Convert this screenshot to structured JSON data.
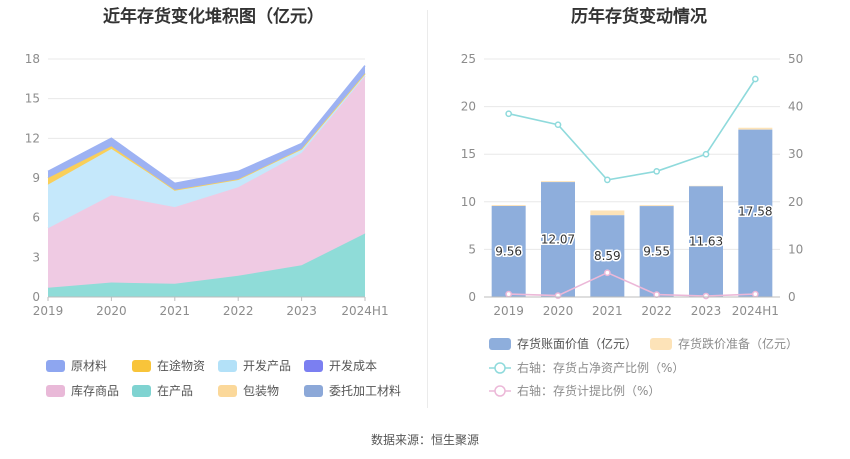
{
  "left_chart": {
    "title": "近年存货变化堆积图（亿元）",
    "chart_data": {
      "type": "area",
      "stacked": true,
      "categories": [
        "2019",
        "2020",
        "2021",
        "2022",
        "2023",
        "2024H1"
      ],
      "ylim": [
        0,
        18
      ],
      "yticks": [
        0,
        3,
        6,
        9,
        12,
        15,
        18
      ],
      "grid": true,
      "series": [
        {
          "name": "在产品",
          "color": "#8fdcd8",
          "values": [
            0.7,
            1.1,
            1.0,
            1.6,
            2.4,
            4.8
          ]
        },
        {
          "name": "库存商品",
          "color": "#efcae3",
          "values": [
            4.5,
            6.6,
            5.8,
            6.7,
            8.5,
            11.9
          ]
        },
        {
          "name": "开发产品",
          "color": "#c5e8fb",
          "values": [
            3.3,
            3.5,
            1.3,
            0.6,
            0.3,
            0.2
          ]
        },
        {
          "name": "在途物资",
          "color": "#f9cf5a",
          "values": [
            0.5,
            0.2,
            0.0,
            0.0,
            0.0,
            0.0
          ]
        },
        {
          "name": "原材料",
          "color": "#9db2f3",
          "values": [
            0.5,
            0.6,
            0.5,
            0.6,
            0.4,
            0.6
          ]
        },
        {
          "name": "开发成本",
          "color": "#7b7ff1",
          "values": [
            0,
            0,
            0,
            0,
            0,
            0
          ]
        },
        {
          "name": "包装物",
          "color": "#fde0a8",
          "values": [
            0,
            0,
            0,
            0,
            0,
            0
          ]
        },
        {
          "name": "委托加工材料",
          "color": "#8ca8d8",
          "values": [
            0,
            0,
            0,
            0,
            0,
            0
          ]
        }
      ],
      "legend": [
        {
          "name": "原材料",
          "color": "#8ea6f0"
        },
        {
          "name": "在途物资",
          "color": "#f8c43a"
        },
        {
          "name": "开发产品",
          "color": "#b3e1f8"
        },
        {
          "name": "开发成本",
          "color": "#7b7ff1"
        },
        {
          "name": "库存商品",
          "color": "#e9b9d8"
        },
        {
          "name": "在产品",
          "color": "#7fd3d1"
        },
        {
          "name": "包装物",
          "color": "#fbd89a"
        },
        {
          "name": "委托加工材料",
          "color": "#8ca8d8"
        }
      ],
      "legend_position": "bottom"
    }
  },
  "right_chart": {
    "title": "历年存货变动情况",
    "chart_data": {
      "type": "bar",
      "categories": [
        "2019",
        "2020",
        "2021",
        "2022",
        "2023",
        "2024H1"
      ],
      "ylim": [
        0,
        25
      ],
      "yticks": [
        0,
        5,
        10,
        15,
        20,
        25
      ],
      "y2lim": [
        0,
        50
      ],
      "y2ticks": [
        0,
        10,
        20,
        30,
        40,
        50
      ],
      "grid": true,
      "bars": [
        {
          "name": "存货账面价值（亿元）",
          "color": "#8eaedc",
          "values": [
            9.56,
            12.07,
            8.59,
            9.55,
            11.63,
            17.58
          ],
          "labels": [
            "9.56",
            "12.07",
            "8.59",
            "9.55",
            "11.63",
            "17.58"
          ]
        },
        {
          "name": "存货跌价准备（亿元）",
          "color": "#fde3b8",
          "values": [
            0.1,
            0.1,
            0.5,
            0.1,
            0.05,
            0.2
          ]
        }
      ],
      "lines": [
        {
          "name": "右轴：存货占净资产比例（%）",
          "color": "#8fdadc",
          "axis": "right",
          "values": [
            38.5,
            36.2,
            24.6,
            26.4,
            30.0,
            45.8
          ]
        },
        {
          "name": "右轴：存货计提比例（%）",
          "color": "#ecb8d8",
          "axis": "right",
          "values": [
            0.6,
            0.3,
            5.1,
            0.5,
            0.2,
            0.6
          ]
        }
      ],
      "legend_position": "bottom"
    }
  },
  "source": "数据来源：恒生聚源"
}
